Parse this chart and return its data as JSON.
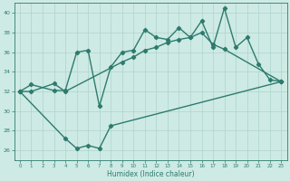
{
  "line1_x": [
    0,
    1,
    3,
    4,
    5,
    6,
    7,
    8,
    9,
    10,
    11,
    12,
    13,
    14,
    15,
    16,
    17,
    18,
    19,
    20,
    21,
    22,
    23
  ],
  "line1_y": [
    32,
    32.7,
    32.1,
    32.1,
    36.0,
    36.2,
    30.5,
    34.5,
    36.0,
    36.2,
    38.3,
    37.5,
    37.3,
    38.5,
    37.5,
    39.2,
    36.5,
    40.5,
    36.5,
    37.5,
    34.8,
    33.2,
    33.0
  ],
  "line2_x": [
    0,
    1,
    3,
    4,
    9,
    10,
    11,
    12,
    13,
    14,
    15,
    16,
    17,
    18,
    23
  ],
  "line2_y": [
    32,
    32.0,
    32.8,
    32.0,
    35.0,
    35.5,
    36.2,
    36.5,
    37.0,
    37.3,
    37.5,
    38.0,
    36.8,
    36.3,
    33.0
  ],
  "line3_x": [
    0,
    4,
    5,
    6,
    7,
    8,
    23
  ],
  "line3_y": [
    32,
    27.2,
    26.2,
    26.5,
    26.2,
    28.5,
    33.0
  ],
  "color": "#2d7b6e",
  "bg_color": "#ceeae4",
  "grid_color": "#aed4cc",
  "xlabel": "Humidex (Indice chaleur)",
  "xlim": [
    -0.5,
    23.5
  ],
  "ylim": [
    25.0,
    41.0
  ],
  "yticks": [
    26,
    28,
    30,
    32,
    34,
    36,
    38,
    40
  ],
  "xticks": [
    0,
    1,
    2,
    3,
    4,
    5,
    6,
    7,
    8,
    9,
    10,
    11,
    12,
    13,
    14,
    15,
    16,
    17,
    18,
    19,
    20,
    21,
    22,
    23
  ],
  "marker": "D",
  "markersize": 2.2,
  "linewidth": 1.0
}
